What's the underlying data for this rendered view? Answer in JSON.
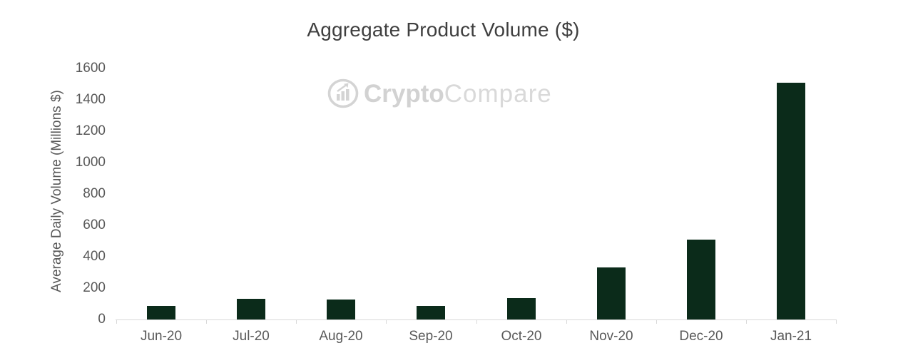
{
  "chart_data": {
    "type": "bar",
    "title": "Aggregate Product Volume ($)",
    "xlabel": "",
    "ylabel": "Average Daily Volume (Millions $)",
    "categories": [
      "Jun-20",
      "Jul-20",
      "Aug-20",
      "Sep-20",
      "Oct-20",
      "Nov-20",
      "Dec-20",
      "Jan-21"
    ],
    "values": [
      85,
      130,
      125,
      85,
      135,
      330,
      510,
      1510
    ],
    "ylim": [
      0,
      1600
    ],
    "yticks": [
      0,
      200,
      400,
      600,
      800,
      1000,
      1200,
      1400,
      1600
    ],
    "grid": false,
    "legend": false
  },
  "watermark": {
    "brand_bold": "Crypto",
    "brand_regular": "Compare",
    "logo_icon": "cryptocompare-logo"
  },
  "colors": {
    "bar": "#0b2b1a",
    "title_text": "#3f3f3f",
    "axis_text": "#595959",
    "axis_line": "#d9d9d9",
    "watermark": "#d4d4d4",
    "background": "#ffffff"
  }
}
